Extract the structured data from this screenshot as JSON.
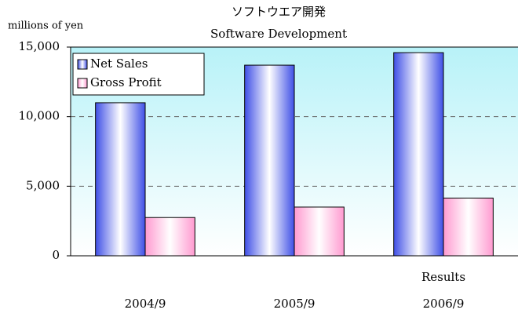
{
  "chart_data": {
    "type": "bar",
    "title": "ソフトウエア開発",
    "subtitle": "Software Development",
    "y_label": "millions of yen",
    "annotation": "Results",
    "categories": [
      "2004/9",
      "2005/9",
      "2006/9"
    ],
    "series": [
      {
        "name": "Net Sales",
        "color": "#3f4fe6",
        "values": [
          11000,
          13700,
          14600
        ]
      },
      {
        "name": "Gross Profit",
        "color": "#ff9ad0",
        "values": [
          2750,
          3500,
          4150
        ]
      }
    ],
    "ylim": [
      0,
      15000
    ],
    "yticks": [
      0,
      {
        "value": 5000,
        "label": "5,000"
      },
      {
        "value": 10000,
        "label": "10,000"
      },
      {
        "value": 15000,
        "label": "15,000"
      }
    ],
    "grid": true,
    "legend": "upper left"
  }
}
